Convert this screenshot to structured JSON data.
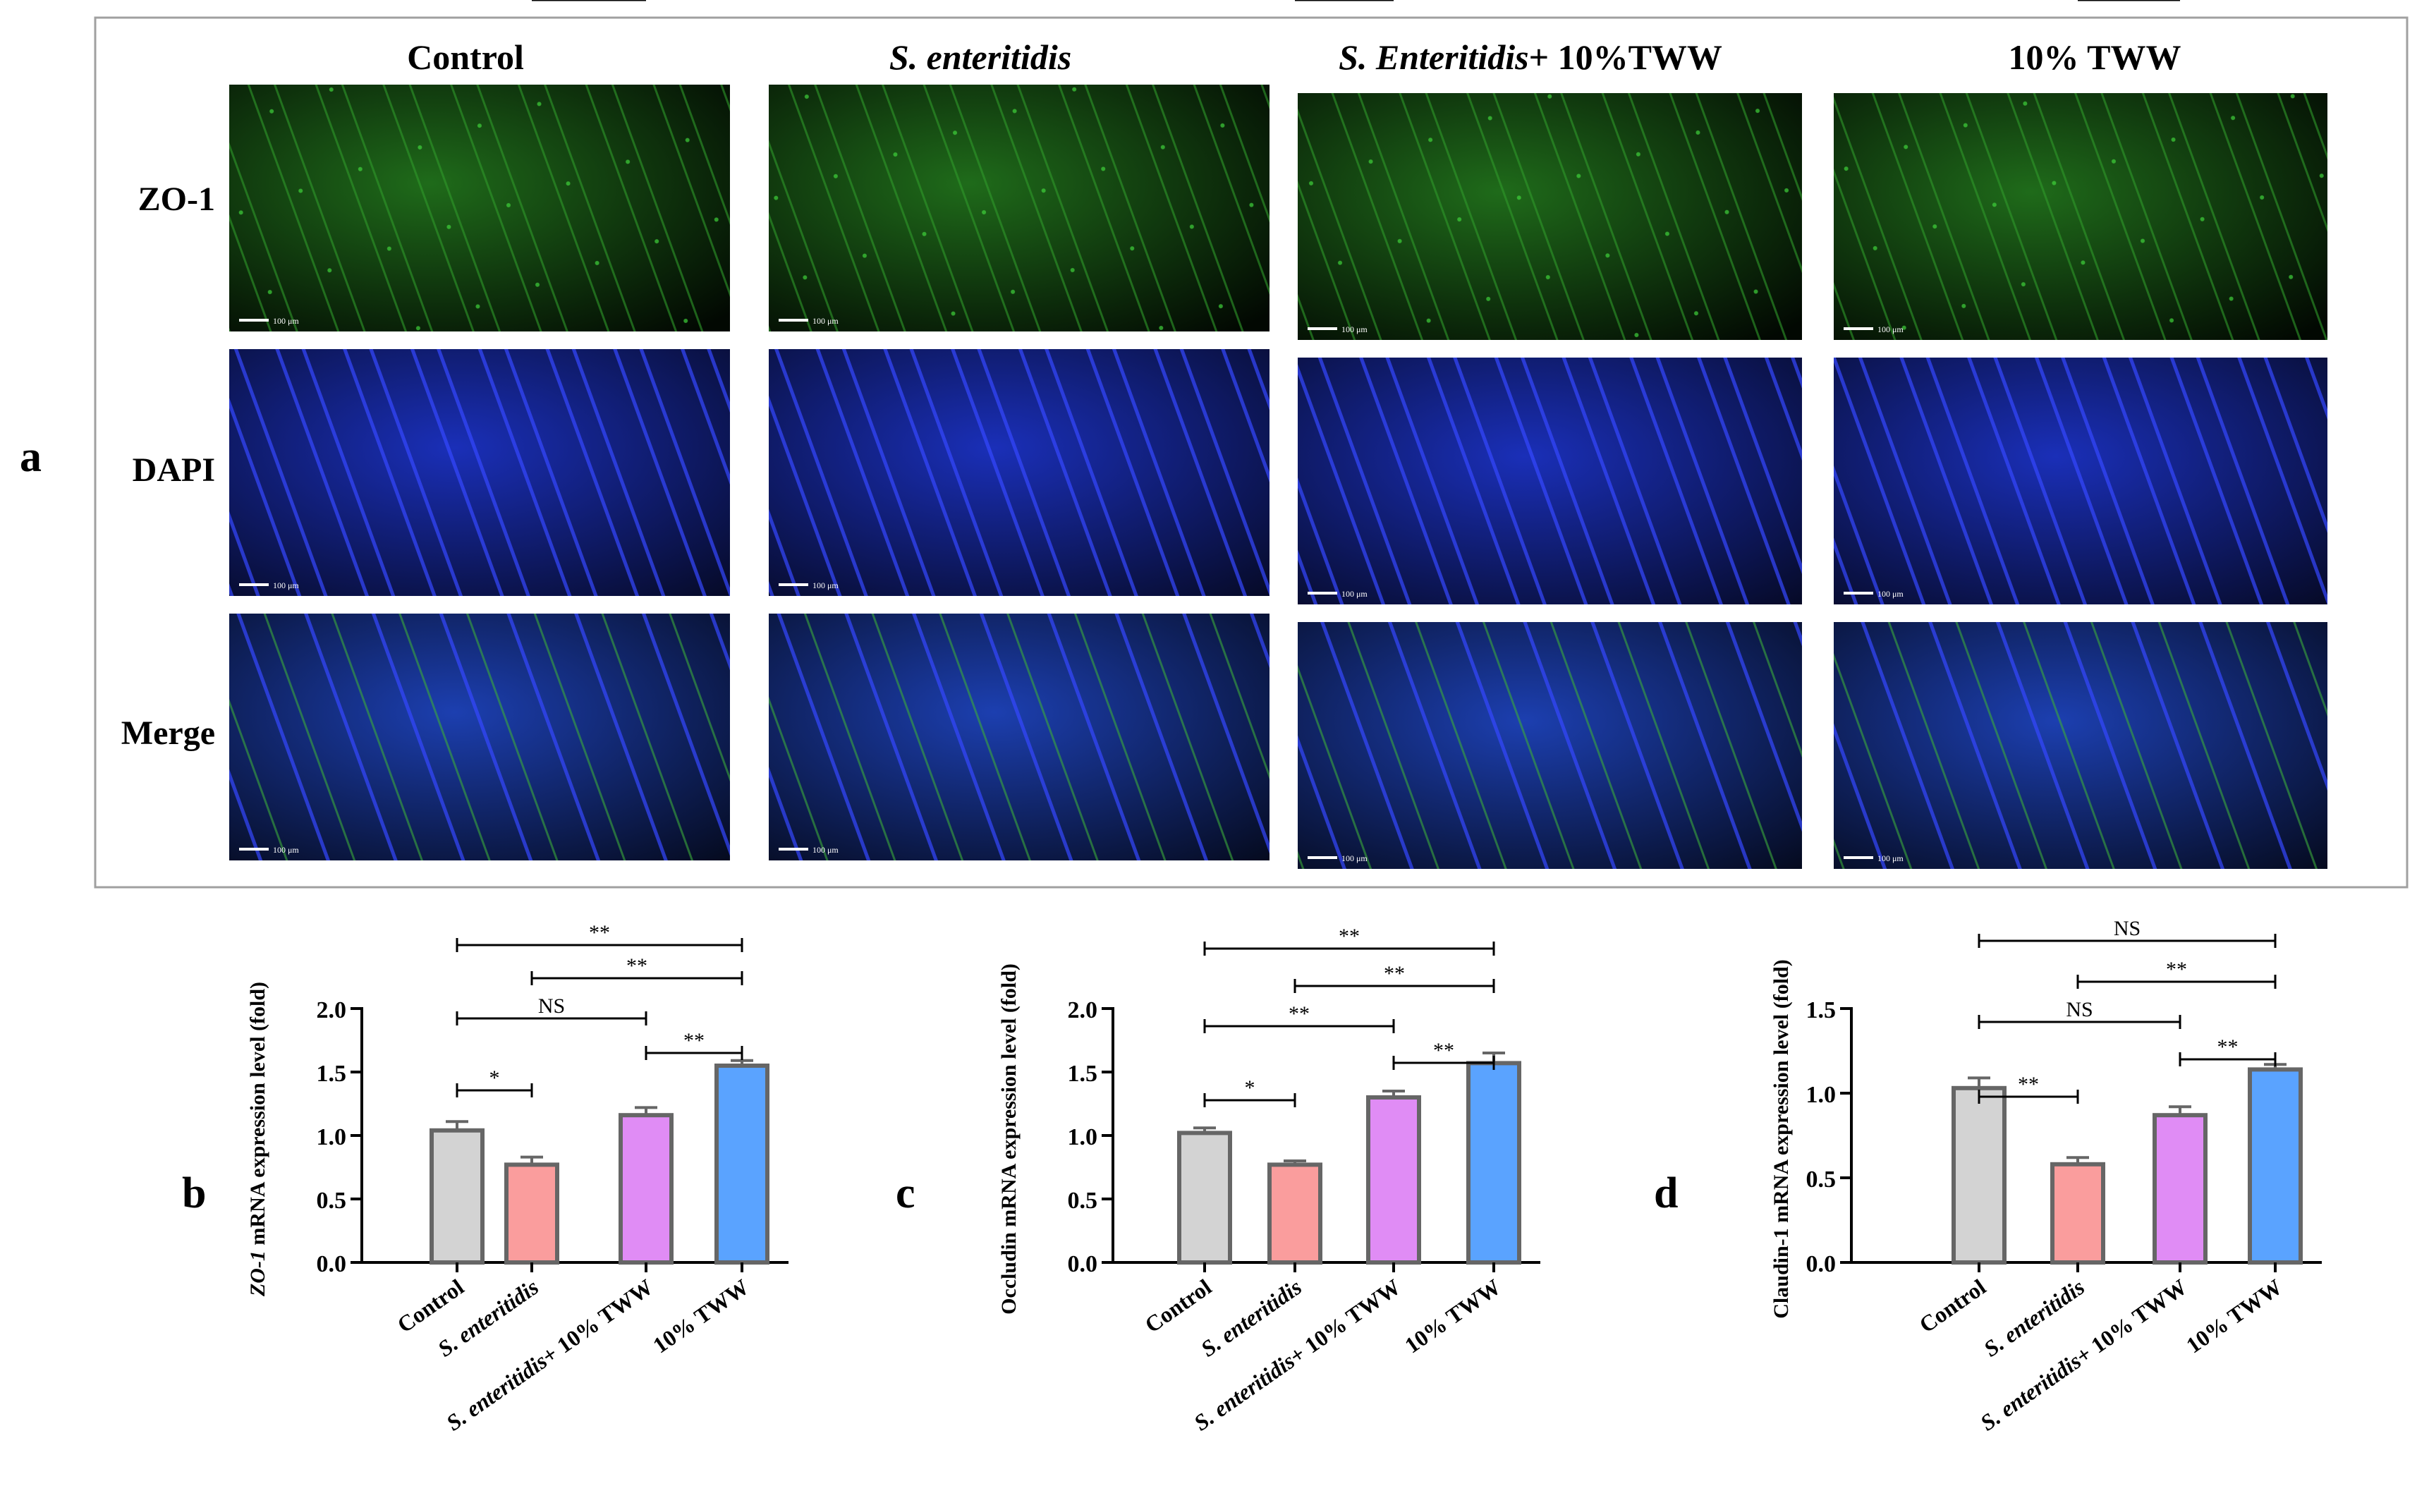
{
  "panel_a": {
    "label": "a",
    "columns": [
      "Control",
      "S. enteritidis",
      "S. Enteritidis+ 10%TWW",
      "10% TWW"
    ],
    "column_parts": [
      {
        "italic": "",
        "rest": "Control"
      },
      {
        "italic": "S. enteritidis",
        "rest": ""
      },
      {
        "italic": "S. Enteritidis",
        "rest": "+ 10%TWW"
      },
      {
        "italic": "",
        "rest": "10% TWW"
      }
    ],
    "rows": [
      "ZO-1",
      "DAPI",
      "Merge"
    ],
    "scale_bar": "100 μm"
  },
  "colors": {
    "Control": "#d3d3d3",
    "S. enteritidis": "#fa9d9d",
    "S. enteritidis+ 10% TWW": "#e08cf5",
    "10% TWW": "#5aa3ff",
    "bar_edge": "#666666",
    "frame": "#a0a0a0"
  },
  "chart_data": [
    {
      "type": "bar",
      "panel": "b",
      "ylabel_italic": "ZO-1",
      "ylabel_rest": " mRNA expression level (fold)",
      "categories": [
        "Control",
        "S. enteritidis",
        "S. enteritidis+ 10% TWW",
        "10% TWW"
      ],
      "values": [
        1.04,
        0.77,
        1.16,
        1.55
      ],
      "errors": [
        0.07,
        0.06,
        0.06,
        0.04
      ],
      "ylim": [
        0,
        2.0
      ],
      "yticks": [
        0.0,
        0.5,
        1.0,
        1.5,
        2.0
      ],
      "ytick_labels": [
        "0.0",
        "0.5",
        "1.0",
        "1.5",
        "2.0"
      ],
      "significance": [
        {
          "from": 0,
          "to": 3,
          "label": "**"
        },
        {
          "from": 1,
          "to": 3,
          "label": "**"
        },
        {
          "from": 0,
          "to": 2,
          "label": "NS"
        },
        {
          "from": 2,
          "to": 3,
          "label": "**"
        },
        {
          "from": 0,
          "to": 1,
          "label": "*"
        },
        {
          "from": 1,
          "to": 2,
          "label": "**"
        }
      ]
    },
    {
      "type": "bar",
      "panel": "c",
      "ylabel_italic": "",
      "ylabel_rest": "Occludin mRNA expression level (fold)",
      "categories": [
        "Control",
        "S. enteritidis",
        "S. enteritidis+ 10% TWW",
        "10% TWW"
      ],
      "values": [
        1.02,
        0.77,
        1.3,
        1.57
      ],
      "errors": [
        0.04,
        0.03,
        0.05,
        0.08
      ],
      "ylim": [
        0,
        2.0
      ],
      "yticks": [
        0.0,
        0.5,
        1.0,
        1.5,
        2.0
      ],
      "ytick_labels": [
        "0.0",
        "0.5",
        "1.0",
        "1.5",
        "2.0"
      ],
      "significance": [
        {
          "from": 0,
          "to": 3,
          "label": "**"
        },
        {
          "from": 1,
          "to": 3,
          "label": "**"
        },
        {
          "from": 0,
          "to": 2,
          "label": "**"
        },
        {
          "from": 2,
          "to": 3,
          "label": "**"
        },
        {
          "from": 0,
          "to": 1,
          "label": "*"
        },
        {
          "from": 1,
          "to": 2,
          "label": "**"
        }
      ]
    },
    {
      "type": "bar",
      "panel": "d",
      "ylabel_italic": "",
      "ylabel_rest": "Claudin-1 mRNA expression level (fold)",
      "categories": [
        "Control",
        "S. enteritidis",
        "S. enteritidis+ 10% TWW",
        "10% TWW"
      ],
      "values": [
        1.03,
        0.58,
        0.87,
        1.14
      ],
      "errors": [
        0.06,
        0.04,
        0.05,
        0.03
      ],
      "ylim": [
        0,
        1.5
      ],
      "yticks": [
        0.0,
        0.5,
        1.0,
        1.5
      ],
      "ytick_labels": [
        "0.0",
        "0.5",
        "1.0",
        "1.5"
      ],
      "significance": [
        {
          "from": 0,
          "to": 3,
          "label": "NS"
        },
        {
          "from": 1,
          "to": 3,
          "label": "**"
        },
        {
          "from": 0,
          "to": 2,
          "label": "NS"
        },
        {
          "from": 2,
          "to": 3,
          "label": "**"
        },
        {
          "from": 0,
          "to": 1,
          "label": "**"
        },
        {
          "from": 1,
          "to": 2,
          "label": "**"
        }
      ]
    }
  ]
}
